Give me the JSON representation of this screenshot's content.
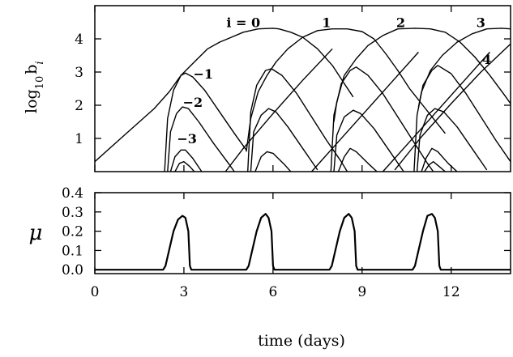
{
  "chart_data": [
    {
      "type": "line",
      "ylabel": "log10 bi",
      "ylabel_main": "log",
      "ylabel_sub": "10",
      "ylabel_tail": "b",
      "ylabel_tail_sub": "i",
      "xlim": [
        0,
        14
      ],
      "ylim": [
        0,
        5
      ],
      "yticks": [
        1,
        2,
        3,
        4
      ],
      "ytick_labels": [
        "1",
        "2",
        "3",
        "4"
      ],
      "annotations": [
        {
          "text": "i = 0",
          "x": 5.0,
          "y": 4.35
        },
        {
          "text": "1",
          "x": 7.8,
          "y": 4.35
        },
        {
          "text": "2",
          "x": 10.3,
          "y": 4.35
        },
        {
          "text": "3",
          "x": 13.0,
          "y": 4.35
        },
        {
          "text": "4",
          "x": 13.2,
          "y": 3.25
        },
        {
          "text": "−1",
          "x": 3.65,
          "y": 2.8
        },
        {
          "text": "−2",
          "x": 3.3,
          "y": 1.95
        },
        {
          "text": "−3",
          "x": 3.1,
          "y": 0.85
        }
      ],
      "series": [
        {
          "id": "i0",
          "points": [
            [
              0,
              0.3
            ],
            [
              1,
              1.1
            ],
            [
              2,
              1.9
            ],
            [
              2.5,
              2.4
            ],
            [
              2.9,
              2.9
            ],
            [
              3.4,
              3.35
            ],
            [
              3.8,
              3.7
            ],
            [
              4.2,
              3.9
            ],
            [
              4.6,
              4.05
            ],
            [
              5,
              4.2
            ],
            [
              5.5,
              4.3
            ],
            [
              6,
              4.32
            ],
            [
              6.2,
              4.3
            ],
            [
              6.6,
              4.2
            ],
            [
              7,
              4.05
            ],
            [
              7.5,
              3.7
            ],
            [
              8,
              3.2
            ],
            [
              8.4,
              2.65
            ],
            [
              8.7,
              2.25
            ]
          ]
        },
        {
          "id": "i1",
          "points": [
            [
              5.1,
              0.6
            ],
            [
              5.25,
              1.6
            ],
            [
              5.5,
              2.4
            ],
            [
              5.8,
              2.9
            ],
            [
              6.1,
              3.3
            ],
            [
              6.5,
              3.7
            ],
            [
              7,
              4.05
            ],
            [
              7.5,
              4.25
            ],
            [
              8,
              4.3
            ],
            [
              8.5,
              4.3
            ],
            [
              9,
              4.22
            ],
            [
              9.4,
              4.0
            ],
            [
              9.8,
              3.55
            ],
            [
              10.2,
              3.05
            ],
            [
              10.6,
              2.5
            ],
            [
              11,
              2.05
            ],
            [
              11.4,
              1.6
            ],
            [
              11.8,
              1.15
            ]
          ]
        },
        {
          "id": "i2",
          "points": [
            [
              8.05,
              1.5
            ],
            [
              8.15,
              2.1
            ],
            [
              8.4,
              2.9
            ],
            [
              8.8,
              3.4
            ],
            [
              9.2,
              3.8
            ],
            [
              9.7,
              4.1
            ],
            [
              10.2,
              4.3
            ],
            [
              10.8,
              4.32
            ],
            [
              11.3,
              4.3
            ],
            [
              11.8,
              4.2
            ],
            [
              12.3,
              3.9
            ],
            [
              12.8,
              3.45
            ],
            [
              13.3,
              2.9
            ],
            [
              13.8,
              2.3
            ],
            [
              14,
              2.05
            ]
          ]
        },
        {
          "id": "i3",
          "points": [
            [
              10.9,
              1.95
            ],
            [
              11,
              2.4
            ],
            [
              11.3,
              3.05
            ],
            [
              11.7,
              3.5
            ],
            [
              12.2,
              3.9
            ],
            [
              12.7,
              4.15
            ],
            [
              13.2,
              4.3
            ],
            [
              13.7,
              4.32
            ],
            [
              14,
              4.3
            ]
          ]
        },
        {
          "id": "i4",
          "points": [
            [
              10.1,
              0.05
            ],
            [
              11,
              1.05
            ],
            [
              12,
              2.05
            ],
            [
              13,
              3.0
            ],
            [
              14,
              3.85
            ]
          ]
        },
        {
          "id": "i1_rise",
          "points": [
            [
              4.4,
              0
            ],
            [
              5.0,
              0.7
            ],
            [
              6,
              1.75
            ],
            [
              7,
              2.75
            ],
            [
              8,
              3.7
            ]
          ]
        },
        {
          "id": "i2_rise",
          "points": [
            [
              7.3,
              0
            ],
            [
              8,
              0.7
            ],
            [
              9,
              1.7
            ],
            [
              10,
              2.7
            ],
            [
              10.9,
              3.6
            ]
          ]
        },
        {
          "id": "i3_rise",
          "points": [
            [
              9.7,
              0
            ],
            [
              10.5,
              0.8
            ],
            [
              11.5,
              1.8
            ],
            [
              12.5,
              2.8
            ],
            [
              13.3,
              3.6
            ]
          ]
        },
        {
          "id": "m1_a",
          "points": [
            [
              2.35,
              0
            ],
            [
              2.45,
              1.6
            ],
            [
              2.65,
              2.45
            ],
            [
              2.9,
              2.9
            ],
            [
              3.05,
              2.97
            ],
            [
              3.3,
              2.85
            ],
            [
              3.7,
              2.45
            ],
            [
              4.2,
              1.8
            ],
            [
              4.7,
              1.15
            ],
            [
              5.1,
              0.65
            ]
          ]
        },
        {
          "id": "m2_a",
          "points": [
            [
              2.45,
              0
            ],
            [
              2.55,
              1.2
            ],
            [
              2.75,
              1.75
            ],
            [
              2.95,
              1.95
            ],
            [
              3.15,
              1.9
            ],
            [
              3.5,
              1.5
            ],
            [
              4,
              0.85
            ],
            [
              4.5,
              0.25
            ],
            [
              4.7,
              0
            ]
          ]
        },
        {
          "id": "m3_a",
          "points": [
            [
              2.55,
              0
            ],
            [
              2.7,
              0.45
            ],
            [
              2.9,
              0.65
            ],
            [
              3.05,
              0.65
            ],
            [
              3.3,
              0.4
            ],
            [
              3.6,
              0
            ]
          ]
        },
        {
          "id": "m4_a",
          "points": [
            [
              2.7,
              0
            ],
            [
              2.85,
              0.25
            ],
            [
              3.0,
              0.3
            ],
            [
              3.2,
              0.15
            ],
            [
              3.35,
              0
            ]
          ]
        },
        {
          "id": "m1_b",
          "points": [
            [
              5.15,
              0
            ],
            [
              5.25,
              1.8
            ],
            [
              5.45,
              2.6
            ],
            [
              5.75,
              3.05
            ],
            [
              5.95,
              3.1
            ],
            [
              6.3,
              2.9
            ],
            [
              6.8,
              2.35
            ],
            [
              7.3,
              1.65
            ],
            [
              7.8,
              0.95
            ],
            [
              8.3,
              0.3
            ],
            [
              8.5,
              0
            ]
          ]
        },
        {
          "id": "m2_b",
          "points": [
            [
              5.25,
              0
            ],
            [
              5.35,
              1.2
            ],
            [
              5.6,
              1.7
            ],
            [
              5.85,
              1.9
            ],
            [
              6.1,
              1.8
            ],
            [
              6.5,
              1.35
            ],
            [
              7,
              0.7
            ],
            [
              7.5,
              0.05
            ]
          ]
        },
        {
          "id": "m3_b",
          "points": [
            [
              5.4,
              0
            ],
            [
              5.6,
              0.45
            ],
            [
              5.8,
              0.6
            ],
            [
              6,
              0.55
            ],
            [
              6.4,
              0.2
            ],
            [
              6.6,
              0
            ]
          ]
        },
        {
          "id": "m1_c",
          "points": [
            [
              7.95,
              0
            ],
            [
              8.05,
              1.7
            ],
            [
              8.3,
              2.65
            ],
            [
              8.6,
              3.05
            ],
            [
              8.8,
              3.15
            ],
            [
              9.2,
              2.9
            ],
            [
              9.7,
              2.35
            ],
            [
              10.2,
              1.65
            ],
            [
              10.7,
              0.95
            ],
            [
              11.2,
              0.25
            ],
            [
              11.4,
              0
            ]
          ]
        },
        {
          "id": "m2_c",
          "points": [
            [
              8.05,
              0
            ],
            [
              8.15,
              1.1
            ],
            [
              8.4,
              1.65
            ],
            [
              8.7,
              1.85
            ],
            [
              8.95,
              1.75
            ],
            [
              9.4,
              1.3
            ],
            [
              9.9,
              0.65
            ],
            [
              10.4,
              0
            ]
          ]
        },
        {
          "id": "m3_c",
          "points": [
            [
              8.2,
              0
            ],
            [
              8.4,
              0.45
            ],
            [
              8.6,
              0.7
            ],
            [
              8.8,
              0.6
            ],
            [
              9.2,
              0.25
            ],
            [
              9.5,
              0
            ]
          ]
        },
        {
          "id": "m1_d",
          "points": [
            [
              10.75,
              0
            ],
            [
              10.85,
              1.7
            ],
            [
              11.05,
              2.6
            ],
            [
              11.35,
              3.05
            ],
            [
              11.55,
              3.2
            ],
            [
              12,
              2.95
            ],
            [
              12.5,
              2.35
            ],
            [
              13,
              1.65
            ],
            [
              13.5,
              0.95
            ],
            [
              14,
              0.3
            ]
          ]
        },
        {
          "id": "m2_d",
          "points": [
            [
              10.85,
              0
            ],
            [
              10.95,
              1.1
            ],
            [
              11.2,
              1.7
            ],
            [
              11.45,
              1.9
            ],
            [
              11.75,
              1.8
            ],
            [
              12.2,
              1.35
            ],
            [
              12.7,
              0.7
            ],
            [
              13.2,
              0.05
            ]
          ]
        },
        {
          "id": "m3_d",
          "points": [
            [
              11,
              0
            ],
            [
              11.15,
              0.4
            ],
            [
              11.35,
              0.7
            ],
            [
              11.55,
              0.6
            ],
            [
              11.9,
              0.25
            ],
            [
              12.2,
              0
            ]
          ]
        },
        {
          "id": "m4_d",
          "points": [
            [
              11.1,
              0
            ],
            [
              11.25,
              0.2
            ],
            [
              11.4,
              0.3
            ],
            [
              11.6,
              0.15
            ],
            [
              11.8,
              0
            ]
          ]
        }
      ]
    },
    {
      "type": "line",
      "ylabel": "μ",
      "xlabel": "time (days)",
      "xlim": [
        0,
        14
      ],
      "ylim": [
        -0.02,
        0.4
      ],
      "xticks": [
        0,
        3,
        6,
        9,
        12
      ],
      "xtick_labels": [
        "0",
        "3",
        "6",
        "9",
        "12"
      ],
      "yticks": [
        0.0,
        0.1,
        0.2,
        0.3,
        0.4
      ],
      "ytick_labels": [
        "0.0",
        "0.1",
        "0.2",
        "0.3",
        "0.4"
      ],
      "series": [
        {
          "id": "mu",
          "points": [
            [
              0,
              0
            ],
            [
              2.3,
              0
            ],
            [
              2.38,
              0.02
            ],
            [
              2.5,
              0.1
            ],
            [
              2.65,
              0.2
            ],
            [
              2.8,
              0.26
            ],
            [
              2.95,
              0.28
            ],
            [
              3.05,
              0.27
            ],
            [
              3.15,
              0.2
            ],
            [
              3.2,
              0.02
            ],
            [
              3.25,
              0
            ],
            [
              5.1,
              0
            ],
            [
              5.18,
              0.02
            ],
            [
              5.3,
              0.1
            ],
            [
              5.45,
              0.2
            ],
            [
              5.6,
              0.27
            ],
            [
              5.75,
              0.29
            ],
            [
              5.85,
              0.27
            ],
            [
              5.95,
              0.2
            ],
            [
              6.0,
              0.02
            ],
            [
              6.05,
              0
            ],
            [
              7.9,
              0
            ],
            [
              7.98,
              0.02
            ],
            [
              8.1,
              0.1
            ],
            [
              8.25,
              0.2
            ],
            [
              8.4,
              0.27
            ],
            [
              8.55,
              0.29
            ],
            [
              8.65,
              0.27
            ],
            [
              8.75,
              0.2
            ],
            [
              8.8,
              0.02
            ],
            [
              8.85,
              0
            ],
            [
              10.7,
              0
            ],
            [
              10.78,
              0.02
            ],
            [
              10.9,
              0.1
            ],
            [
              11.05,
              0.2
            ],
            [
              11.2,
              0.28
            ],
            [
              11.35,
              0.29
            ],
            [
              11.45,
              0.27
            ],
            [
              11.55,
              0.2
            ],
            [
              11.6,
              0.02
            ],
            [
              11.65,
              0
            ],
            [
              14,
              0
            ]
          ]
        }
      ]
    }
  ]
}
